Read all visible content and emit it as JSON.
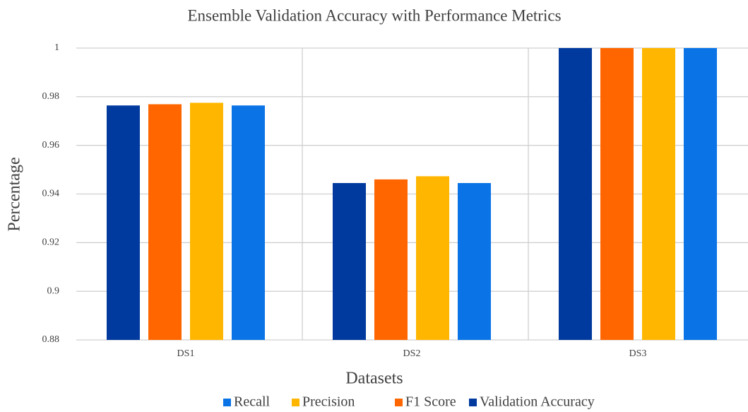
{
  "chart_data": {
    "type": "bar",
    "title": "Ensemble Validation Accuracy with Performance Metrics",
    "xlabel": "Datasets",
    "ylabel": "Percentage",
    "categories": [
      "DS1",
      "DS2",
      "DS3"
    ],
    "series": [
      {
        "name": "Recall",
        "color": "#0a74e6",
        "values": [
          0.9764,
          0.9445,
          1
        ]
      },
      {
        "name": "Precision",
        "color": "#ffb600",
        "values": [
          0.9775,
          0.9473,
          1
        ]
      },
      {
        "name": "F1 Score",
        "color": "#ff6600",
        "values": [
          0.9769,
          0.946,
          1
        ]
      },
      {
        "name": "Validation Accuracy",
        "color": "#003a9e",
        "values": [
          0.9764,
          0.9445,
          1
        ]
      }
    ],
    "ylim": [
      0.88,
      1
    ],
    "yticks": [
      0.88,
      0.9,
      0.92,
      0.94,
      0.96,
      0.98,
      1
    ],
    "grid": true,
    "legend": "bottom"
  }
}
